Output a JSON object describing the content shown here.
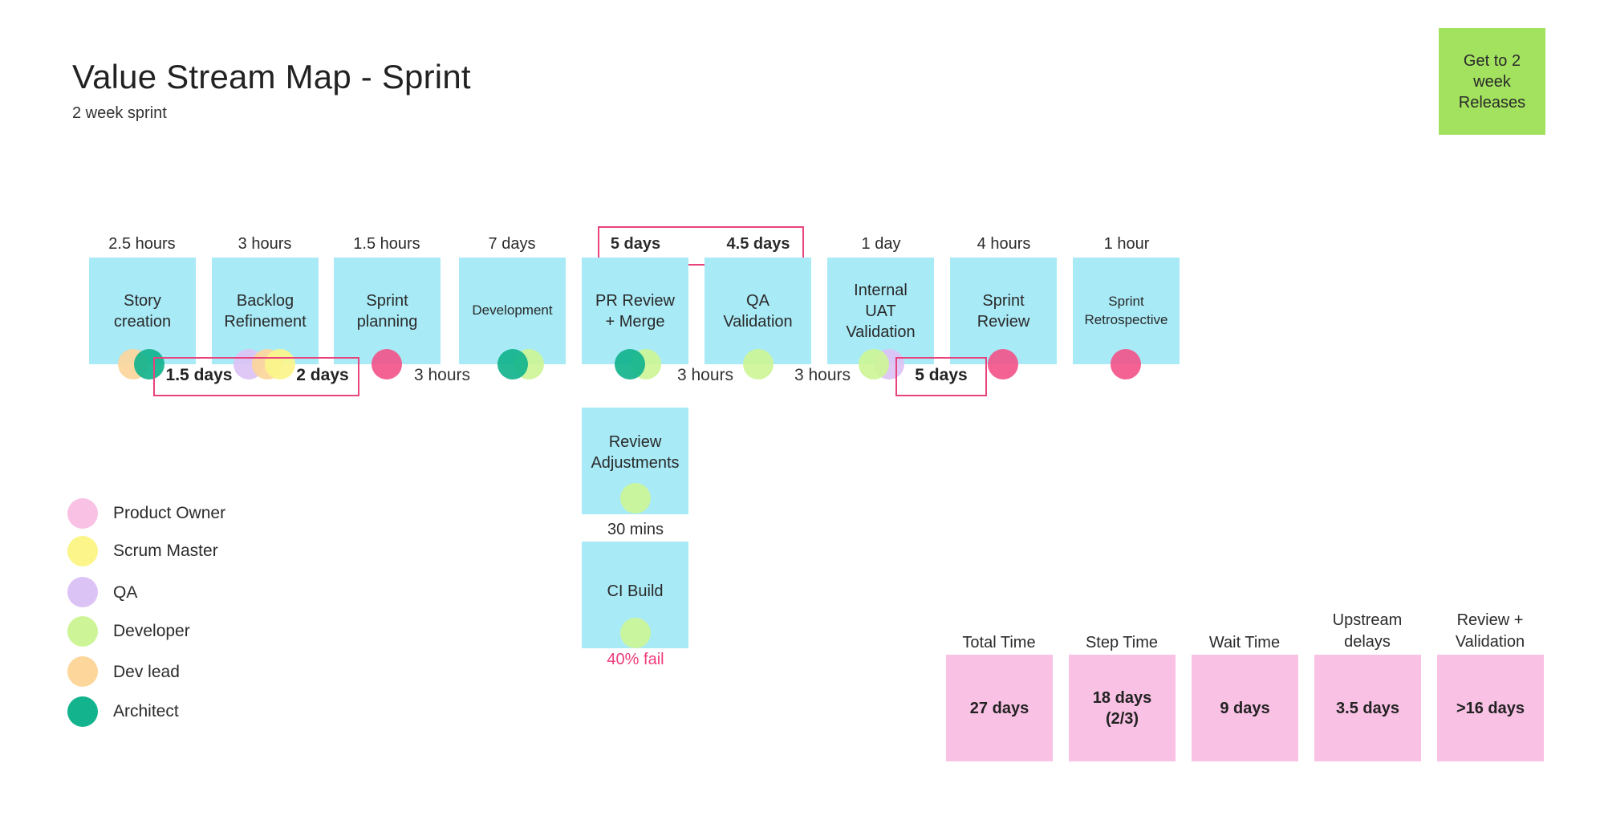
{
  "header": {
    "title": "Value Stream Map - Sprint",
    "subtitle": "2 week sprint"
  },
  "goal": {
    "label": "Get to 2 week Releases"
  },
  "steps": [
    {
      "label": "Story creation",
      "time": "2.5 hours"
    },
    {
      "label": "Backlog Refinement",
      "time": "3 hours"
    },
    {
      "label": "Sprint planning",
      "time": "1.5 hours"
    },
    {
      "label": "Development",
      "time": "7 days"
    },
    {
      "label": "PR Review + Merge",
      "time": "5 days"
    },
    {
      "label": "QA Validation",
      "time": "4.5 days"
    },
    {
      "label": "Internal UAT Validation",
      "time": "1 day"
    },
    {
      "label": "Sprint Review",
      "time": "4 hours"
    },
    {
      "label": "Sprint Retrospective",
      "time": "1 hour"
    }
  ],
  "sub_steps": [
    {
      "label": "Review Adjustments",
      "time": "30 mins"
    },
    {
      "label": "CI Build",
      "note": "40% fail"
    }
  ],
  "waits": [
    "1.5 days",
    "2 days",
    "3 hours",
    "3 hours",
    "3 hours",
    "5 days"
  ],
  "legend": [
    {
      "label": "Product Owner",
      "color": "#f9c1e4"
    },
    {
      "label": "Scrum Master",
      "color": "#fbf58a"
    },
    {
      "label": "QA",
      "color": "#dcc3f5"
    },
    {
      "label": "Developer",
      "color": "#cdf597"
    },
    {
      "label": "Dev lead",
      "color": "#fcd69b"
    },
    {
      "label": "Architect",
      "color": "#12b38d"
    }
  ],
  "colors": {
    "step": "#a8eaf6",
    "goal": "#a3e25f",
    "metric": "#f9c1e4",
    "highlight": "#e8437d",
    "role_pink_dot": "#f2558a",
    "fail_text": "#ee3b7a"
  },
  "metrics": [
    {
      "label": "Total Time",
      "value": "27 days"
    },
    {
      "label": "Step Time",
      "value": "18 days (2/3)"
    },
    {
      "label": "Wait Time",
      "value": "9 days"
    },
    {
      "label": "Upstream delays",
      "value": "3.5 days"
    },
    {
      "label": "Review + Validation",
      "value": ">16 days"
    }
  ]
}
